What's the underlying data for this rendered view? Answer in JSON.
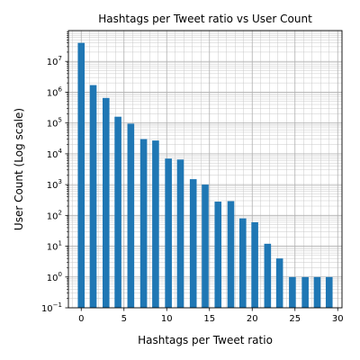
{
  "chart_data": {
    "type": "bar",
    "title": "Hashtags per Tweet ratio vs User Count",
    "xlabel": "Hashtags per Tweet ratio",
    "ylabel": "User Count (Log scale)",
    "yscale": "log",
    "ylim": [
      0.1,
      100000000
    ],
    "xlim": [
      -1.5,
      30.5
    ],
    "grid": "major and minor, both axes",
    "bar_color": "#1f77b4",
    "x_ticks": [
      "0",
      "5",
      "10",
      "15",
      "20",
      "25",
      "30"
    ],
    "y_ticks": [
      {
        "base": "10",
        "exp": "−1"
      },
      {
        "base": "10",
        "exp": "0"
      },
      {
        "base": "10",
        "exp": "1"
      },
      {
        "base": "10",
        "exp": "2"
      },
      {
        "base": "10",
        "exp": "3"
      },
      {
        "base": "10",
        "exp": "4"
      },
      {
        "base": "10",
        "exp": "5"
      },
      {
        "base": "10",
        "exp": "6"
      },
      {
        "base": "10",
        "exp": "7"
      }
    ],
    "x": [
      0,
      1.4,
      2.9,
      4.3,
      5.8,
      7.3,
      8.7,
      10.2,
      11.6,
      13.1,
      14.5,
      16.0,
      17.5,
      18.9,
      20.3,
      21.8,
      23.2,
      24.7,
      26.2,
      27.6,
      29.0
    ],
    "values": [
      40000000,
      1700000,
      650000,
      160000,
      95000,
      30000,
      27000,
      7000,
      6500,
      1500,
      1000,
      280,
      290,
      80,
      60,
      12,
      4,
      1,
      1,
      1,
      1
    ]
  }
}
